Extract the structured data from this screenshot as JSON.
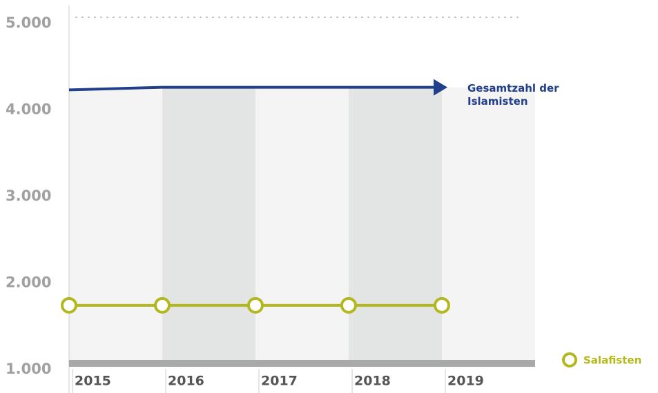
{
  "chart_data": {
    "type": "line",
    "x": [
      "2015",
      "2016",
      "2017",
      "2018",
      "2019"
    ],
    "series": [
      {
        "name": "Gesamtzahl der Islamisten",
        "color": "#213f8a",
        "values": [
          4160,
          4190,
          4190,
          4190,
          4190
        ]
      },
      {
        "name": "Salafisten",
        "color": "#b3b81e",
        "values": [
          1670,
          1670,
          1670,
          1670,
          1670
        ]
      }
    ],
    "ylim": [
      1000,
      5000
    ],
    "yticks": [
      {
        "value": 1000,
        "label": "1.000"
      },
      {
        "value": 2000,
        "label": "2.000"
      },
      {
        "value": 3000,
        "label": "3.000"
      },
      {
        "value": 4000,
        "label": "4.000"
      },
      {
        "value": 5000,
        "label": "5.000"
      }
    ]
  }
}
